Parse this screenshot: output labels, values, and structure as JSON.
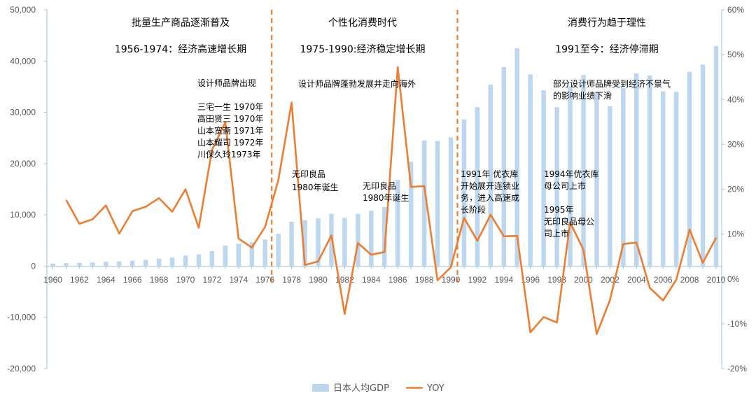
{
  "chart_data": {
    "type": "bar",
    "x": [
      1960,
      1961,
      1962,
      1963,
      1964,
      1965,
      1966,
      1967,
      1968,
      1969,
      1970,
      1971,
      1972,
      1973,
      1974,
      1975,
      1976,
      1977,
      1978,
      1979,
      1980,
      1981,
      1982,
      1983,
      1984,
      1985,
      1986,
      1987,
      1988,
      1989,
      1990,
      1991,
      1992,
      1993,
      1994,
      1995,
      1996,
      1997,
      1998,
      1999,
      2000,
      2001,
      2002,
      2003,
      2004,
      2005,
      2006,
      2007,
      2008,
      2009,
      2010
    ],
    "series": [
      {
        "name": "日本人均GDP",
        "type": "bar",
        "axis": "left",
        "color": "#bdd7ee",
        "values": [
          480,
          560,
          640,
          720,
          840,
          920,
          1060,
          1230,
          1450,
          1670,
          2040,
          2270,
          2920,
          3990,
          4350,
          4660,
          5200,
          6300,
          8650,
          8950,
          9300,
          10200,
          9400,
          10200,
          10800,
          11500,
          16800,
          20350,
          24500,
          24400,
          25100,
          28600,
          31000,
          35400,
          38800,
          42500,
          37400,
          34300,
          31000,
          35000,
          37300,
          33800,
          31200,
          34800,
          37600,
          37200,
          34100,
          34000,
          37900,
          39300,
          42900
        ]
      },
      {
        "name": "YOY",
        "type": "line",
        "axis": "right",
        "color": "#ed7d31",
        "values": [
          null,
          17.6,
          12.3,
          13.3,
          16.4,
          10.1,
          15.1,
          16.1,
          18.0,
          15.0,
          20.0,
          11.4,
          28.8,
          34.9,
          9.0,
          7.0,
          11.6,
          22.0,
          39.3,
          3.1,
          3.9,
          9.7,
          -7.8,
          8.0,
          5.4,
          6.0,
          47.2,
          20.5,
          20.7,
          -0.3,
          2.6,
          13.6,
          8.5,
          14.3,
          9.5,
          9.6,
          -11.9,
          -8.5,
          -9.7,
          12.6,
          6.5,
          -12.3,
          -4.7,
          7.8,
          8.1,
          -2.0,
          -4.8,
          -0.2,
          11.0,
          3.6,
          9.2
        ]
      }
    ],
    "left_axis": {
      "min": -20000,
      "max": 50000,
      "step": 10000,
      "tick_labels": [
        "-20,000",
        "-10,000",
        "0",
        "10,000",
        "20,000",
        "30,000",
        "40,000",
        "50,000"
      ]
    },
    "right_axis": {
      "min": -20,
      "max": 60,
      "step": 10,
      "tick_labels": [
        "-20%",
        "-10%",
        "0%",
        "10%",
        "20%",
        "30%",
        "40%",
        "50%",
        "60%"
      ]
    },
    "x_tick_labels": [
      "1960",
      "1962",
      "1964",
      "1966",
      "1968",
      "1970",
      "1972",
      "1974",
      "1976",
      "1978",
      "1980",
      "1982",
      "1984",
      "1986",
      "1988",
      "1990",
      "1992",
      "1994",
      "1996",
      "1998",
      "2000",
      "2002",
      "2004",
      "2006",
      "2008",
      "2010"
    ],
    "dividers": [
      1976.5,
      1990.5
    ],
    "grid": false,
    "legend": {
      "position": "bottom",
      "items": [
        "日本人均GDP",
        "YOY"
      ]
    },
    "period_headers": [
      {
        "title": "批量生产商品逐渐普及",
        "subtitle": "1956-1974：经济高速增长期"
      },
      {
        "title": "个性化消费时代",
        "subtitle": "1975-1990:经济稳定增长期"
      },
      {
        "title": "消费行为趋于理性",
        "subtitle": "1991至今：经济停滞期"
      }
    ],
    "annotations": [
      {
        "id": "brands-emerge",
        "lines": [
          "设计师品牌出现"
        ]
      },
      {
        "id": "brand-list",
        "lines": [
          "三宅一生 1970年",
          "高田贤三 1970年",
          "山本宽斋 1971年",
          "山本耀司 1972年",
          "川保久玲1973年"
        ]
      },
      {
        "id": "brands-boom",
        "lines": [
          "设计师品牌蓬勃发展并走向海外"
        ]
      },
      {
        "id": "muji-1980-a",
        "lines": [
          "无印良品",
          "1980年诞生"
        ]
      },
      {
        "id": "muji-1980-b",
        "lines": [
          "无印良品",
          "1980年诞生"
        ]
      },
      {
        "id": "uniqlo-1991",
        "lines": [
          "1991年 优衣库",
          "开始展开连锁业",
          "务，进入高速成",
          "长阶段"
        ]
      },
      {
        "id": "brands-decline",
        "lines": [
          "部分设计师品牌受到经济不景气",
          "的影响业绩下滑"
        ]
      },
      {
        "id": "uniqlo-1994",
        "lines": [
          "1994年优衣库",
          "母公司上市"
        ]
      },
      {
        "id": "muji-1995",
        "lines": [
          "1995年",
          "无印良品母公",
          "司上市"
        ]
      }
    ]
  }
}
